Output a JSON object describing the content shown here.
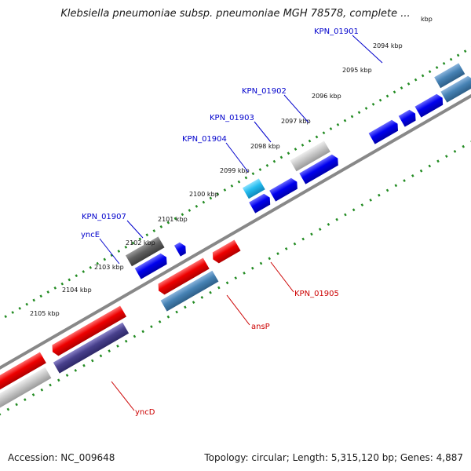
{
  "title": "Klebsiella pneumoniae subsp. pneumoniae MGH 78578, complete ...",
  "footer": {
    "accession": "Accession: NC_009648",
    "summary": "Topology: circular; Length: 5,315,120 bp; Genes: 4,887"
  },
  "scale": {
    "end_label": "kbp",
    "ticks": [
      {
        "label": "2094 kbp"
      },
      {
        "label": "2095 kbp"
      },
      {
        "label": "2096 kbp"
      },
      {
        "label": "2097 kbp"
      },
      {
        "label": "2098 kbp"
      },
      {
        "label": "2099 kbp"
      },
      {
        "label": "2100 kbp"
      },
      {
        "label": "2101 kbp"
      },
      {
        "label": "2102 kbp"
      },
      {
        "label": "2103 kbp"
      },
      {
        "label": "2104 kbp"
      },
      {
        "label": "2105 kbp"
      }
    ]
  },
  "gene_labels": [
    {
      "text": "KPN_01901",
      "color": "#0000cc"
    },
    {
      "text": "KPN_01902",
      "color": "#0000cc"
    },
    {
      "text": "KPN_01903",
      "color": "#0000cc"
    },
    {
      "text": "KPN_01904",
      "color": "#0000cc"
    },
    {
      "text": "KPN_01907",
      "color": "#0000cc"
    },
    {
      "text": "yncE",
      "color": "#0000cc"
    },
    {
      "text": "KPN_01905",
      "color": "#cc0000"
    },
    {
      "text": "ansP",
      "color": "#cc0000"
    },
    {
      "text": "yncD",
      "color": "#cc0000"
    }
  ],
  "colors": {
    "backbone": "#888888",
    "tick": "#228b22",
    "forward_gene": "#0000ee",
    "reverse_gene": "#ee0000",
    "steel_gene": "#4682b4",
    "slate_gene": "#48408c",
    "light_gray_gene": "#c8c8c8",
    "dark_gray_gene": "#606060",
    "cyan_gene": "#22bbee"
  }
}
